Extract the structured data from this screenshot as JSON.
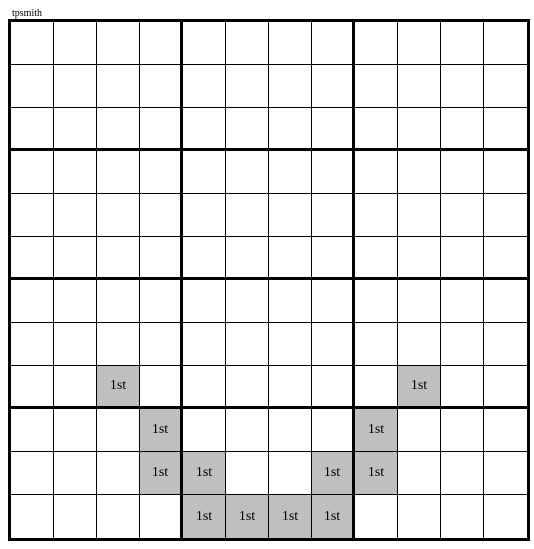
{
  "label": "tpsmith",
  "grid": {
    "rows": 12,
    "cols": 12,
    "cell_size": 43,
    "border_color": "#000000",
    "background_color": "#ffffff",
    "shaded_color": "#bfbfbf",
    "text_color": "#000000",
    "cell_font_size": 14,
    "thick_border_every": 3,
    "block_cols": 4,
    "block_rows": 3,
    "cells": [
      {
        "row": 8,
        "col": 2,
        "text": "1st",
        "shaded": true
      },
      {
        "row": 8,
        "col": 9,
        "text": "1st",
        "shaded": true
      },
      {
        "row": 9,
        "col": 3,
        "text": "1st",
        "shaded": true
      },
      {
        "row": 9,
        "col": 8,
        "text": "1st",
        "shaded": true
      },
      {
        "row": 10,
        "col": 3,
        "text": "1st",
        "shaded": true
      },
      {
        "row": 10,
        "col": 4,
        "text": "1st",
        "shaded": true
      },
      {
        "row": 10,
        "col": 7,
        "text": "1st",
        "shaded": true
      },
      {
        "row": 10,
        "col": 8,
        "text": "1st",
        "shaded": true
      },
      {
        "row": 11,
        "col": 4,
        "text": "1st",
        "shaded": true
      },
      {
        "row": 11,
        "col": 5,
        "text": "1st",
        "shaded": true
      },
      {
        "row": 11,
        "col": 6,
        "text": "1st",
        "shaded": true
      },
      {
        "row": 11,
        "col": 7,
        "text": "1st",
        "shaded": true
      }
    ]
  }
}
